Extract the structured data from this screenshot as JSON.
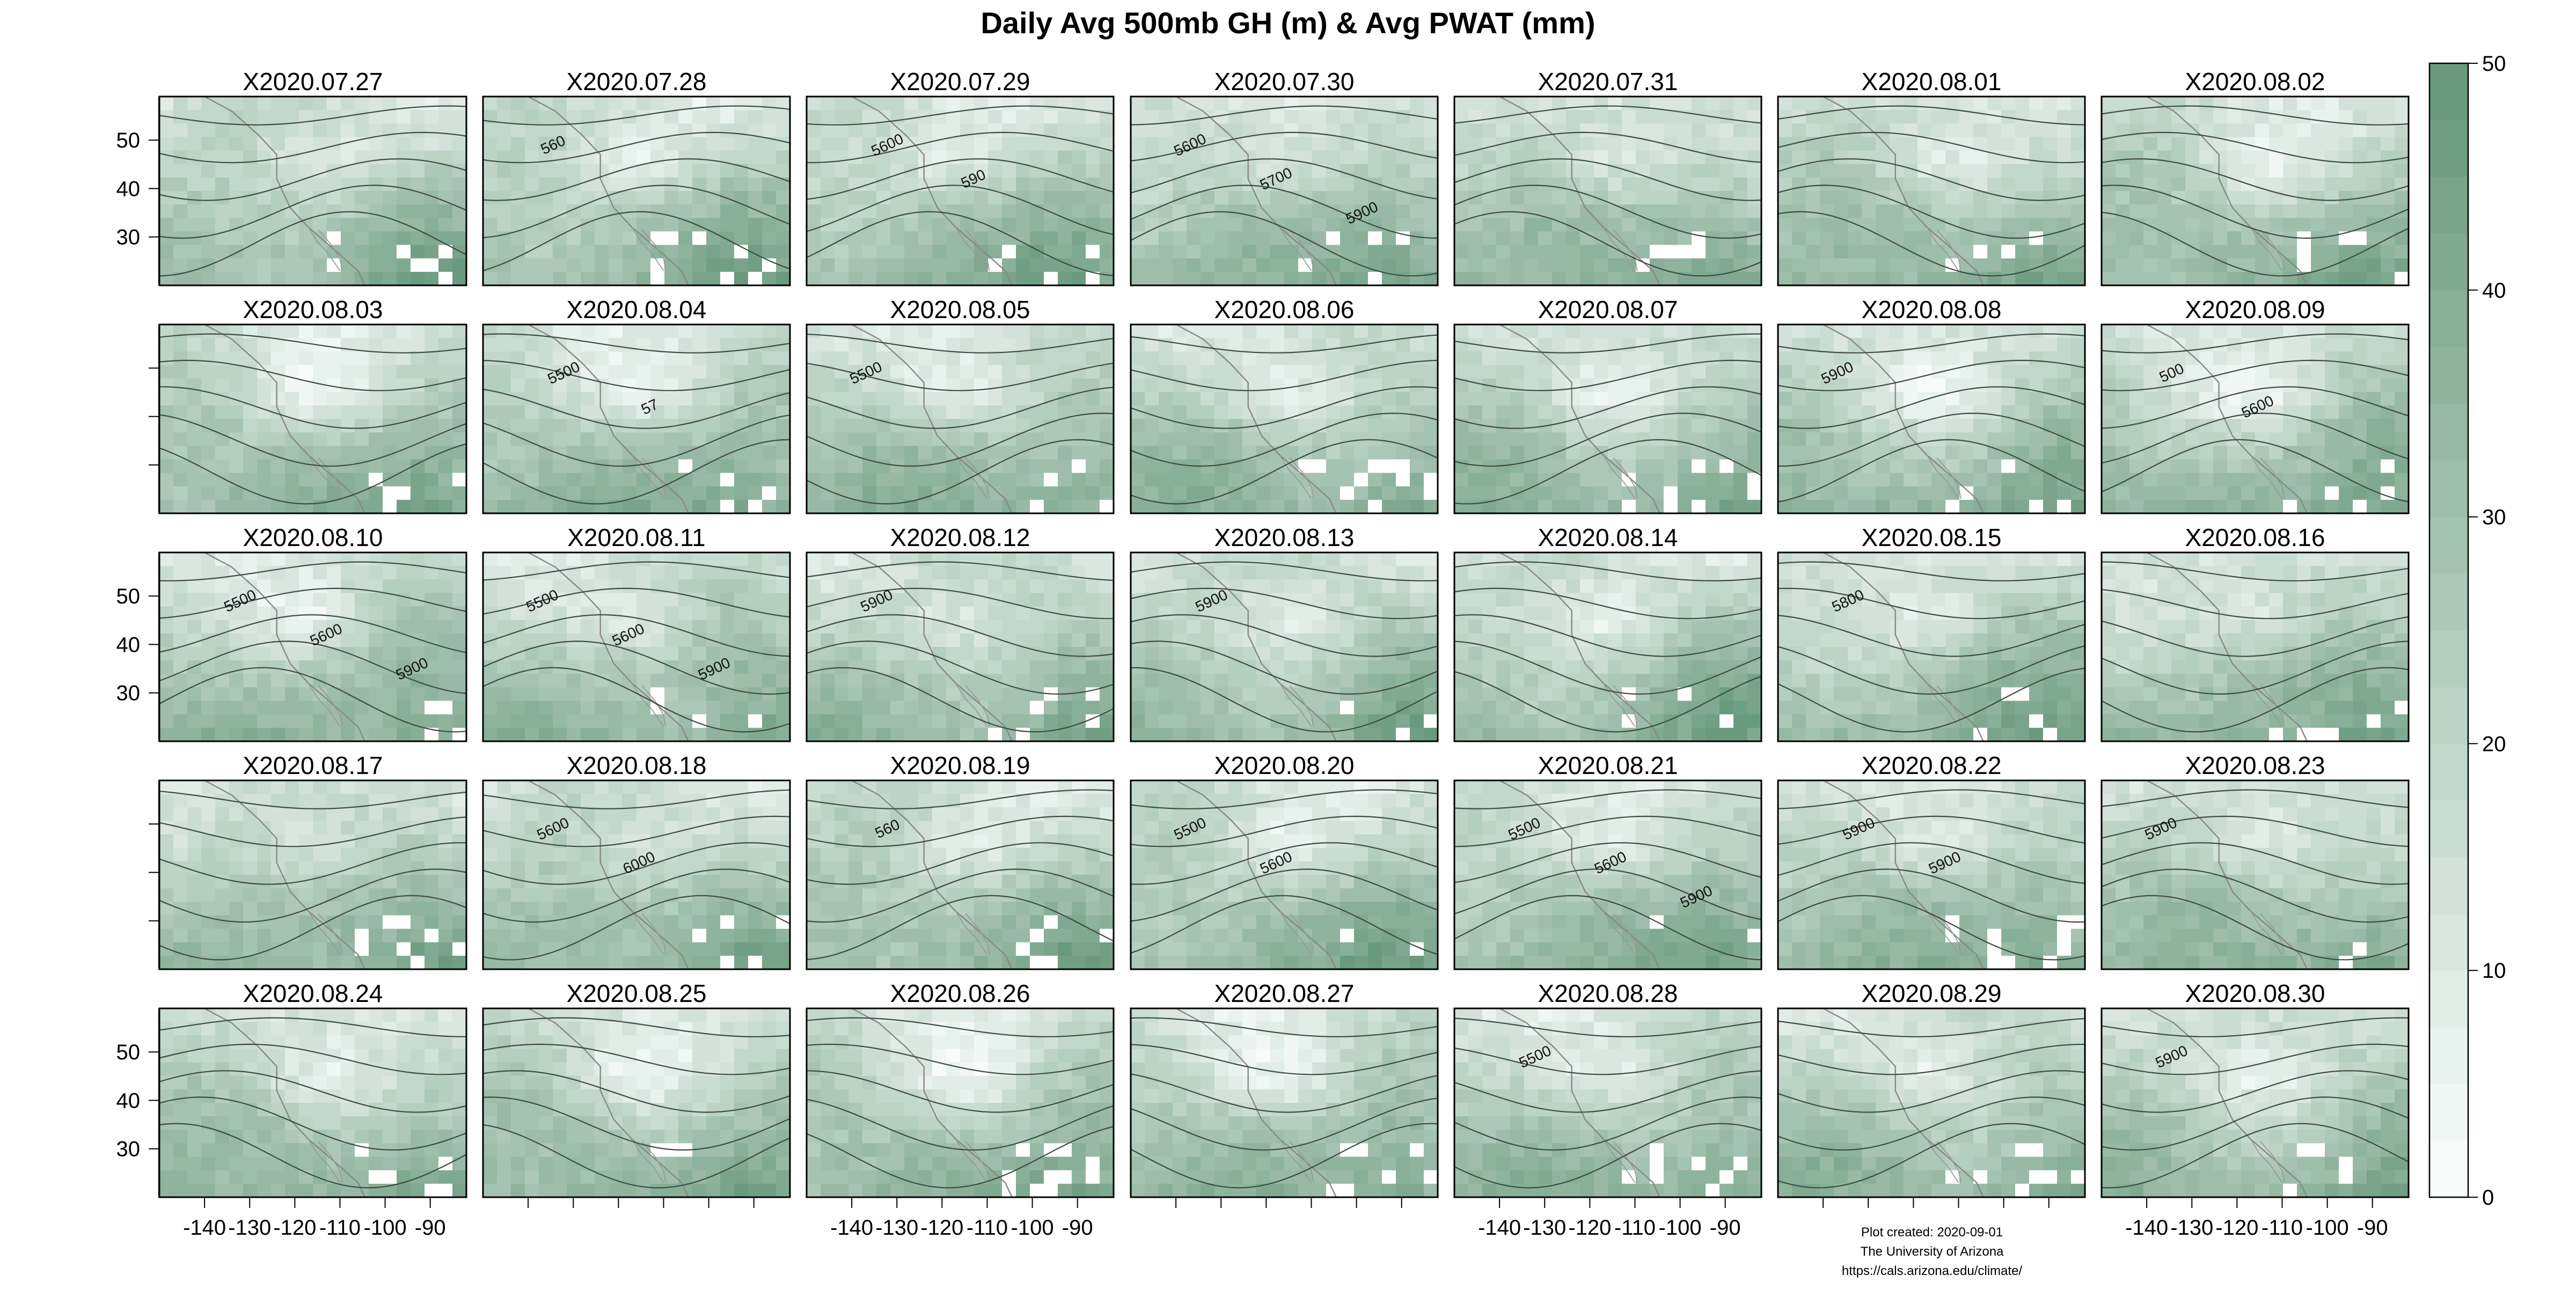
{
  "chart_data": {
    "type": "heatmap",
    "title": "Daily Avg 500mb GH (m) & Avg PWAT (mm)",
    "panels": [
      "X2020.07.27",
      "X2020.07.28",
      "X2020.07.29",
      "X2020.07.30",
      "X2020.07.31",
      "X2020.08.01",
      "X2020.08.02",
      "X2020.08.03",
      "X2020.08.04",
      "X2020.08.05",
      "X2020.08.06",
      "X2020.08.07",
      "X2020.08.08",
      "X2020.08.09",
      "X2020.08.10",
      "X2020.08.11",
      "X2020.08.12",
      "X2020.08.13",
      "X2020.08.14",
      "X2020.08.15",
      "X2020.08.16",
      "X2020.08.17",
      "X2020.08.18",
      "X2020.08.19",
      "X2020.08.20",
      "X2020.08.21",
      "X2020.08.22",
      "X2020.08.23",
      "X2020.08.24",
      "X2020.08.25",
      "X2020.08.26",
      "X2020.08.27",
      "X2020.08.28",
      "X2020.08.29",
      "X2020.08.30"
    ],
    "ncols": 7,
    "nrows": 5,
    "xlim": [
      -150,
      -82
    ],
    "ylim": [
      20,
      59
    ],
    "x_ticks": [
      -140,
      -130,
      -120,
      -110,
      -100,
      -90
    ],
    "y_ticks": [
      30,
      40,
      50
    ],
    "colorbar": {
      "min": 0,
      "max": 50,
      "ticks": [
        0,
        10,
        20,
        30,
        40,
        50
      ],
      "levels": 20,
      "color_low": "#f7fcfb",
      "color_high": "#6a9a7d"
    },
    "contour_labels": [
      {
        "panel": 1,
        "text": "560"
      },
      {
        "panel": 2,
        "text": "5600"
      },
      {
        "panel": 2,
        "text": "590"
      },
      {
        "panel": 3,
        "text": "5600"
      },
      {
        "panel": 3,
        "text": "5700"
      },
      {
        "panel": 3,
        "text": "5900"
      },
      {
        "panel": 8,
        "text": "5500"
      },
      {
        "panel": 8,
        "text": "57"
      },
      {
        "panel": 9,
        "text": "5500"
      },
      {
        "panel": 12,
        "text": "5900"
      },
      {
        "panel": 13,
        "text": "500"
      },
      {
        "panel": 13,
        "text": "5600"
      },
      {
        "panel": 14,
        "text": "5500"
      },
      {
        "panel": 14,
        "text": "5600"
      },
      {
        "panel": 14,
        "text": "5900"
      },
      {
        "panel": 15,
        "text": "5500"
      },
      {
        "panel": 15,
        "text": "5600"
      },
      {
        "panel": 15,
        "text": "5900"
      },
      {
        "panel": 16,
        "text": "5900"
      },
      {
        "panel": 17,
        "text": "5900"
      },
      {
        "panel": 19,
        "text": "5800"
      },
      {
        "panel": 22,
        "text": "5600"
      },
      {
        "panel": 22,
        "text": "6000"
      },
      {
        "panel": 23,
        "text": "560"
      },
      {
        "panel": 24,
        "text": "5500"
      },
      {
        "panel": 24,
        "text": "5600"
      },
      {
        "panel": 25,
        "text": "5500"
      },
      {
        "panel": 25,
        "text": "5600"
      },
      {
        "panel": 25,
        "text": "5900"
      },
      {
        "panel": 26,
        "text": "5900"
      },
      {
        "panel": 26,
        "text": "5900"
      },
      {
        "panel": 27,
        "text": "5900"
      },
      {
        "panel": 32,
        "text": "5500"
      },
      {
        "panel": 34,
        "text": "5900"
      }
    ],
    "footer": [
      "Plot created: 2020-09-01",
      "The University of Arizona",
      "https://cals.arizona.edu/climate/"
    ]
  }
}
